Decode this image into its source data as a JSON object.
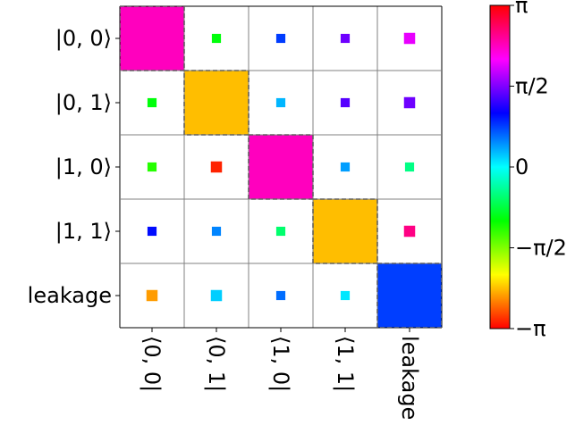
{
  "chart_data": {
    "type": "heatmap",
    "title": "",
    "xlabel": "",
    "ylabel": "",
    "row_labels": [
      "|0, 0⟩",
      "|0, 1⟩",
      "|1, 0⟩",
      "|1, 1⟩",
      "leakage"
    ],
    "col_labels": [
      "⟨0, 0|",
      "⟨0, 1|",
      "⟨1, 0|",
      "⟨1, 1|",
      "leakage"
    ],
    "cells": [
      {
        "row": 0,
        "col": 0,
        "magnitude": 1.0,
        "phase": 2.36
      },
      {
        "row": 0,
        "col": 1,
        "magnitude": 0.02,
        "phase": -1.0
      },
      {
        "row": 0,
        "col": 2,
        "magnitude": 0.02,
        "phase": 0.8
      },
      {
        "row": 0,
        "col": 3,
        "magnitude": 0.02,
        "phase": 1.5
      },
      {
        "row": 0,
        "col": 4,
        "magnitude": 0.03,
        "phase": 2.0
      },
      {
        "row": 1,
        "col": 0,
        "magnitude": 0.02,
        "phase": -1.0
      },
      {
        "row": 1,
        "col": 1,
        "magnitude": 1.0,
        "phase": -2.36
      },
      {
        "row": 1,
        "col": 2,
        "magnitude": 0.02,
        "phase": 0.3
      },
      {
        "row": 1,
        "col": 3,
        "magnitude": 0.02,
        "phase": 1.4
      },
      {
        "row": 1,
        "col": 4,
        "magnitude": 0.03,
        "phase": 1.5
      },
      {
        "row": 2,
        "col": 0,
        "magnitude": 0.02,
        "phase": -1.2
      },
      {
        "row": 2,
        "col": 1,
        "magnitude": 0.03,
        "phase": -3.0
      },
      {
        "row": 2,
        "col": 2,
        "magnitude": 1.0,
        "phase": 2.36
      },
      {
        "row": 2,
        "col": 3,
        "magnitude": 0.02,
        "phase": 0.4
      },
      {
        "row": 2,
        "col": 4,
        "magnitude": 0.02,
        "phase": -0.5
      },
      {
        "row": 3,
        "col": 0,
        "magnitude": 0.02,
        "phase": 1.0
      },
      {
        "row": 3,
        "col": 1,
        "magnitude": 0.02,
        "phase": 0.5
      },
      {
        "row": 3,
        "col": 2,
        "magnitude": 0.02,
        "phase": -0.6
      },
      {
        "row": 3,
        "col": 3,
        "magnitude": 1.0,
        "phase": -2.36
      },
      {
        "row": 3,
        "col": 4,
        "magnitude": 0.03,
        "phase": 2.6
      },
      {
        "row": 4,
        "col": 0,
        "magnitude": 0.03,
        "phase": -2.5
      },
      {
        "row": 4,
        "col": 1,
        "magnitude": 0.03,
        "phase": 0.2
      },
      {
        "row": 4,
        "col": 2,
        "magnitude": 0.02,
        "phase": 0.6
      },
      {
        "row": 4,
        "col": 3,
        "magnitude": 0.02,
        "phase": 0.1
      },
      {
        "row": 4,
        "col": 4,
        "magnitude": 1.0,
        "phase": 0.79
      }
    ],
    "highlighted_cells": [
      [
        0,
        0
      ],
      [
        1,
        1
      ],
      [
        2,
        2
      ],
      [
        3,
        3
      ],
      [
        4,
        4
      ]
    ],
    "colorbar": {
      "colormap": "hsv",
      "range": [
        -3.14159,
        3.14159
      ],
      "ticks": [
        {
          "value": 3.14159,
          "label": "π"
        },
        {
          "value": 1.5708,
          "label": "π/2"
        },
        {
          "value": 0,
          "label": "0"
        },
        {
          "value": -1.5708,
          "label": "−π/2"
        },
        {
          "value": -3.14159,
          "label": "−π"
        }
      ]
    },
    "grid": true,
    "colors": {
      "grid": "#808080",
      "highlight_border": "#606060"
    }
  }
}
